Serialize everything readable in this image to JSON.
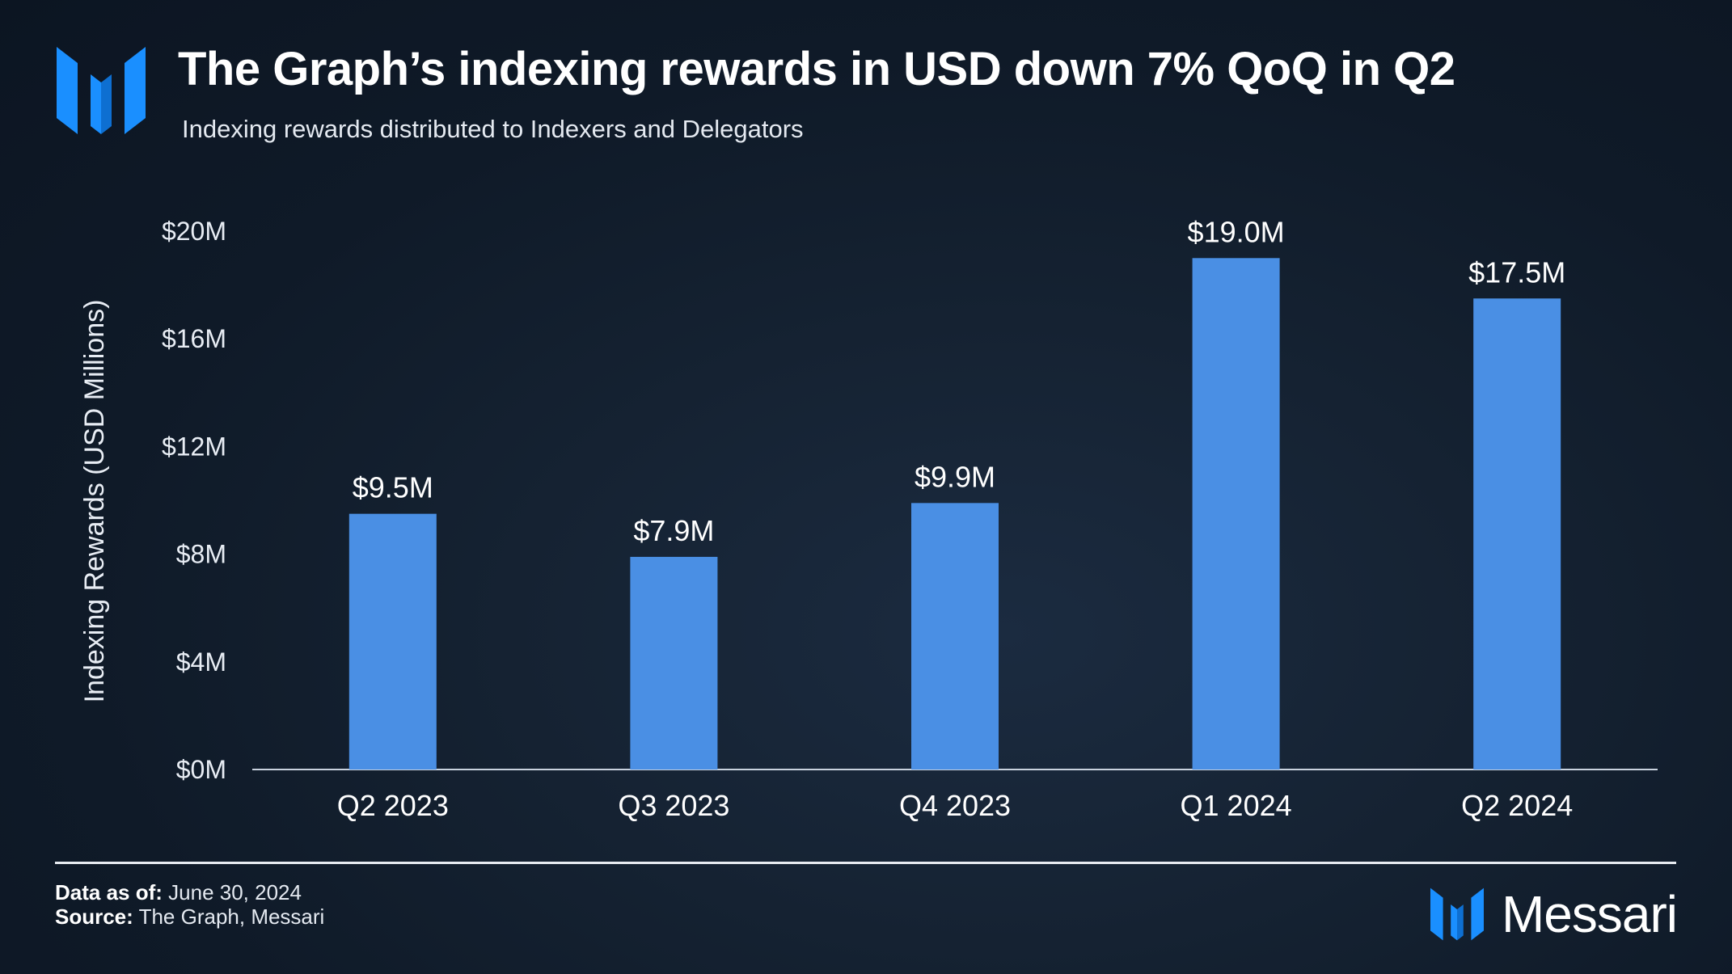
{
  "header": {
    "title": "The Graph’s indexing rewards in USD down 7% QoQ in Q2",
    "subtitle": "Indexing rewards distributed to Indexers and Delegators"
  },
  "footer": {
    "date_label": "Data as of:",
    "date_value": "June 30, 2024",
    "source_label": "Source:",
    "source_value": "The Graph, Messari",
    "brand": "Messari"
  },
  "colors": {
    "bar": "#4a8fe4",
    "logo": "#1a8fff",
    "background": "#111c2b",
    "text": "#ffffff"
  },
  "chart_data": {
    "type": "bar",
    "title": "The Graph’s indexing rewards in USD down 7% QoQ in Q2",
    "subtitle": "Indexing rewards distributed to Indexers and Delegators",
    "xlabel": "",
    "ylabel": "Indexing Rewards (USD Millions)",
    "categories": [
      "Q2 2023",
      "Q3 2023",
      "Q4 2023",
      "Q1 2024",
      "Q2 2024"
    ],
    "values": [
      9.5,
      7.9,
      9.9,
      19.0,
      17.5
    ],
    "data_labels": [
      "$9.5M",
      "$7.9M",
      "$9.9M",
      "$19.0M",
      "$17.5M"
    ],
    "ylim": [
      0,
      20
    ],
    "yticks": [
      0,
      4,
      8,
      12,
      16,
      20
    ],
    "ytick_labels": [
      "$0M",
      "$4M",
      "$8M",
      "$12M",
      "$16M",
      "$20M"
    ],
    "grid": false,
    "legend": "none"
  }
}
